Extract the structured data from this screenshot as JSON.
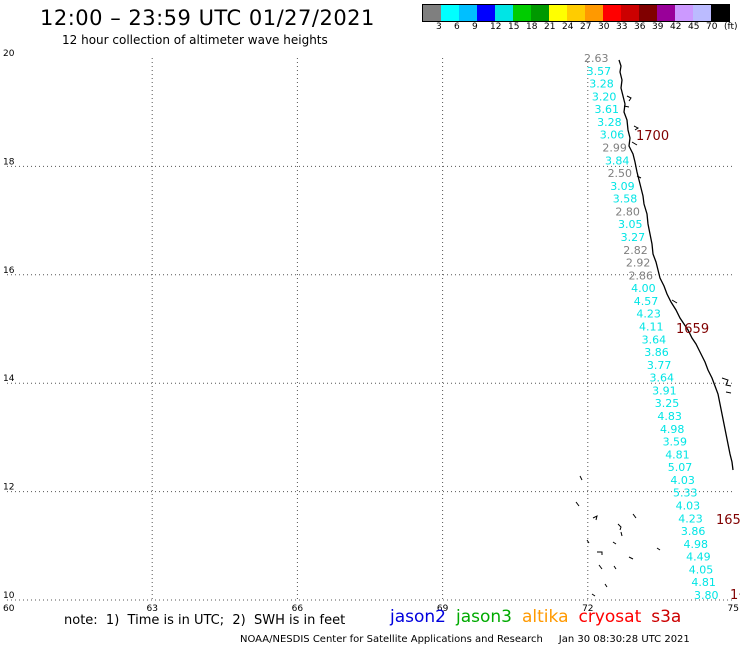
{
  "header": {
    "title": "12:00 – 23:59 UTC 01/27/2021",
    "subtitle": "12 hour collection of altimeter wave heights"
  },
  "legend": {
    "colors": [
      "#7f7f7f",
      "#00ffff",
      "#00bfff",
      "#0000ff",
      "#00e5e5",
      "#00cc00",
      "#009900",
      "#ffff00",
      "#ffcc00",
      "#ff9900",
      "#ff0000",
      "#cc0000",
      "#800000",
      "#990099",
      "#cc99ff",
      "#bbbbff",
      "#000000"
    ],
    "labels": [
      "3",
      "6",
      "9",
      "12",
      "15",
      "18",
      "21",
      "24",
      "27",
      "30",
      "33",
      "36",
      "39",
      "42",
      "45",
      "70",
      "(ft)"
    ]
  },
  "axes": {
    "x_ticks": [
      "60",
      "63",
      "66",
      "69",
      "72",
      "75"
    ],
    "y_ticks": [
      "20",
      "18",
      "16",
      "14",
      "12",
      "10"
    ]
  },
  "track": {
    "values": [
      {
        "v": "2.63",
        "color": "gray"
      },
      {
        "v": "3.57",
        "color": "cyan"
      },
      {
        "v": "3.28",
        "color": "cyan"
      },
      {
        "v": "3.20",
        "color": "cyan"
      },
      {
        "v": "3.61",
        "color": "cyan"
      },
      {
        "v": "3.28",
        "color": "cyan"
      },
      {
        "v": "3.06",
        "color": "cyan"
      },
      {
        "v": "2.99",
        "color": "gray"
      },
      {
        "v": "3.84",
        "color": "cyan"
      },
      {
        "v": "2.50",
        "color": "gray"
      },
      {
        "v": "3.09",
        "color": "cyan"
      },
      {
        "v": "3.58",
        "color": "cyan"
      },
      {
        "v": "2.80",
        "color": "gray"
      },
      {
        "v": "3.05",
        "color": "cyan"
      },
      {
        "v": "3.27",
        "color": "cyan"
      },
      {
        "v": "2.82",
        "color": "gray"
      },
      {
        "v": "2.92",
        "color": "gray"
      },
      {
        "v": "2.86",
        "color": "gray"
      },
      {
        "v": "4.00",
        "color": "cyan"
      },
      {
        "v": "4.57",
        "color": "cyan"
      },
      {
        "v": "4.23",
        "color": "cyan"
      },
      {
        "v": "4.11",
        "color": "cyan"
      },
      {
        "v": "3.64",
        "color": "cyan"
      },
      {
        "v": "3.86",
        "color": "cyan"
      },
      {
        "v": "3.77",
        "color": "cyan"
      },
      {
        "v": "3.64",
        "color": "cyan"
      },
      {
        "v": "3.91",
        "color": "cyan"
      },
      {
        "v": "3.25",
        "color": "cyan"
      },
      {
        "v": "4.83",
        "color": "cyan"
      },
      {
        "v": "4.98",
        "color": "cyan"
      },
      {
        "v": "3.59",
        "color": "cyan"
      },
      {
        "v": "4.81",
        "color": "cyan"
      },
      {
        "v": "5.07",
        "color": "cyan"
      },
      {
        "v": "4.03",
        "color": "cyan"
      },
      {
        "v": "5.33",
        "color": "cyan"
      },
      {
        "v": "4.03",
        "color": "cyan"
      },
      {
        "v": "4.23",
        "color": "cyan"
      },
      {
        "v": "3.86",
        "color": "cyan"
      },
      {
        "v": "4.98",
        "color": "cyan"
      },
      {
        "v": "4.49",
        "color": "cyan"
      },
      {
        "v": "4.05",
        "color": "cyan"
      },
      {
        "v": "4.81",
        "color": "cyan"
      },
      {
        "v": "3.80",
        "color": "cyan"
      }
    ],
    "times": [
      "1700",
      "1659",
      "165",
      "1·"
    ]
  },
  "footer": {
    "note": "note:  1)  Time is in UTC;  2)  SWH is in feet",
    "satellites": [
      {
        "name": "jason2",
        "color": "#0000dd"
      },
      {
        "name": "jason3",
        "color": "#00aa00"
      },
      {
        "name": "altika",
        "color": "#ff9900"
      },
      {
        "name": "cryosat",
        "color": "#ff0000"
      },
      {
        "name": "s3a",
        "color": "#cc0000"
      }
    ],
    "credit": "NOAA/NESDIS Center for Satellite Applications and Research     Jan 30 08:30:28 UTC 2021"
  }
}
